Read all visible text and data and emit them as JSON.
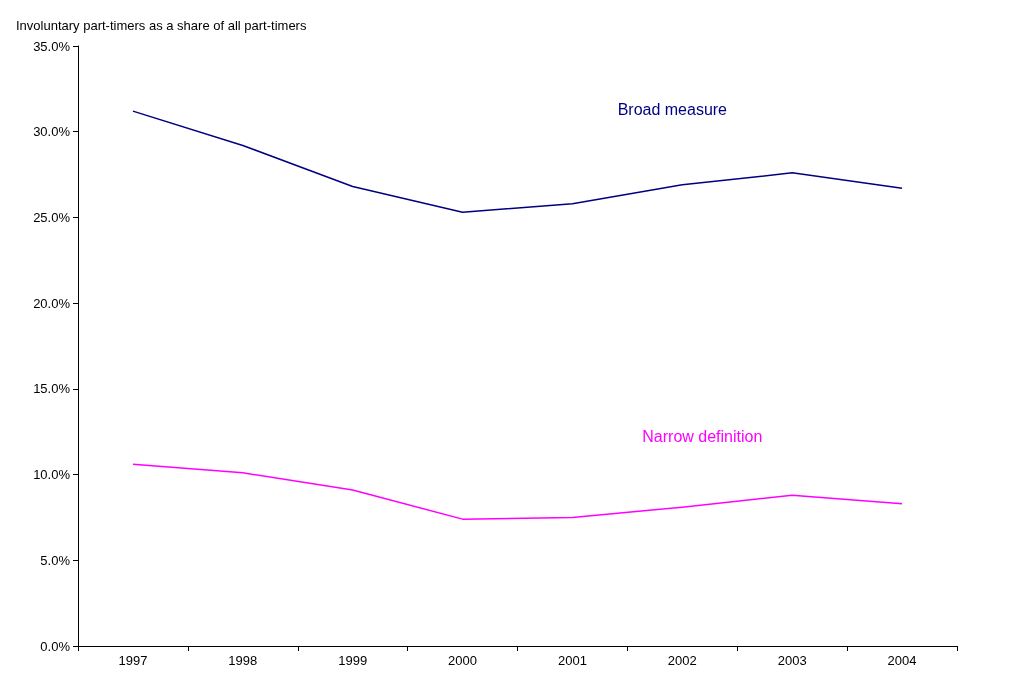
{
  "chart_data": {
    "type": "line",
    "ylabel": "Involuntary part-timers as a share of all part-timers",
    "categories": [
      "1997",
      "1998",
      "1999",
      "2000",
      "2001",
      "2002",
      "2003",
      "2004"
    ],
    "series": [
      {
        "name": "Broad measure",
        "color": "#000080",
        "values": [
          31.2,
          29.2,
          26.8,
          25.3,
          25.8,
          26.9,
          27.6,
          26.7
        ]
      },
      {
        "name": "Narrow definition",
        "color": "#ff00ff",
        "values": [
          10.6,
          10.1,
          9.1,
          7.4,
          7.5,
          8.1,
          8.8,
          8.3
        ]
      }
    ],
    "ylim": [
      0,
      35
    ],
    "yticks": [
      {
        "value": 0,
        "label": "0.0%"
      },
      {
        "value": 5,
        "label": "5.0%"
      },
      {
        "value": 10,
        "label": "10.0%"
      },
      {
        "value": 15,
        "label": "15.0%"
      },
      {
        "value": 20,
        "label": "20.0%"
      },
      {
        "value": 25,
        "label": "25.0%"
      },
      {
        "value": 30,
        "label": "30.0%"
      },
      {
        "value": 35,
        "label": "35.0%"
      }
    ],
    "grid": false,
    "legend": false,
    "marker": "none",
    "line_style": "solid"
  }
}
